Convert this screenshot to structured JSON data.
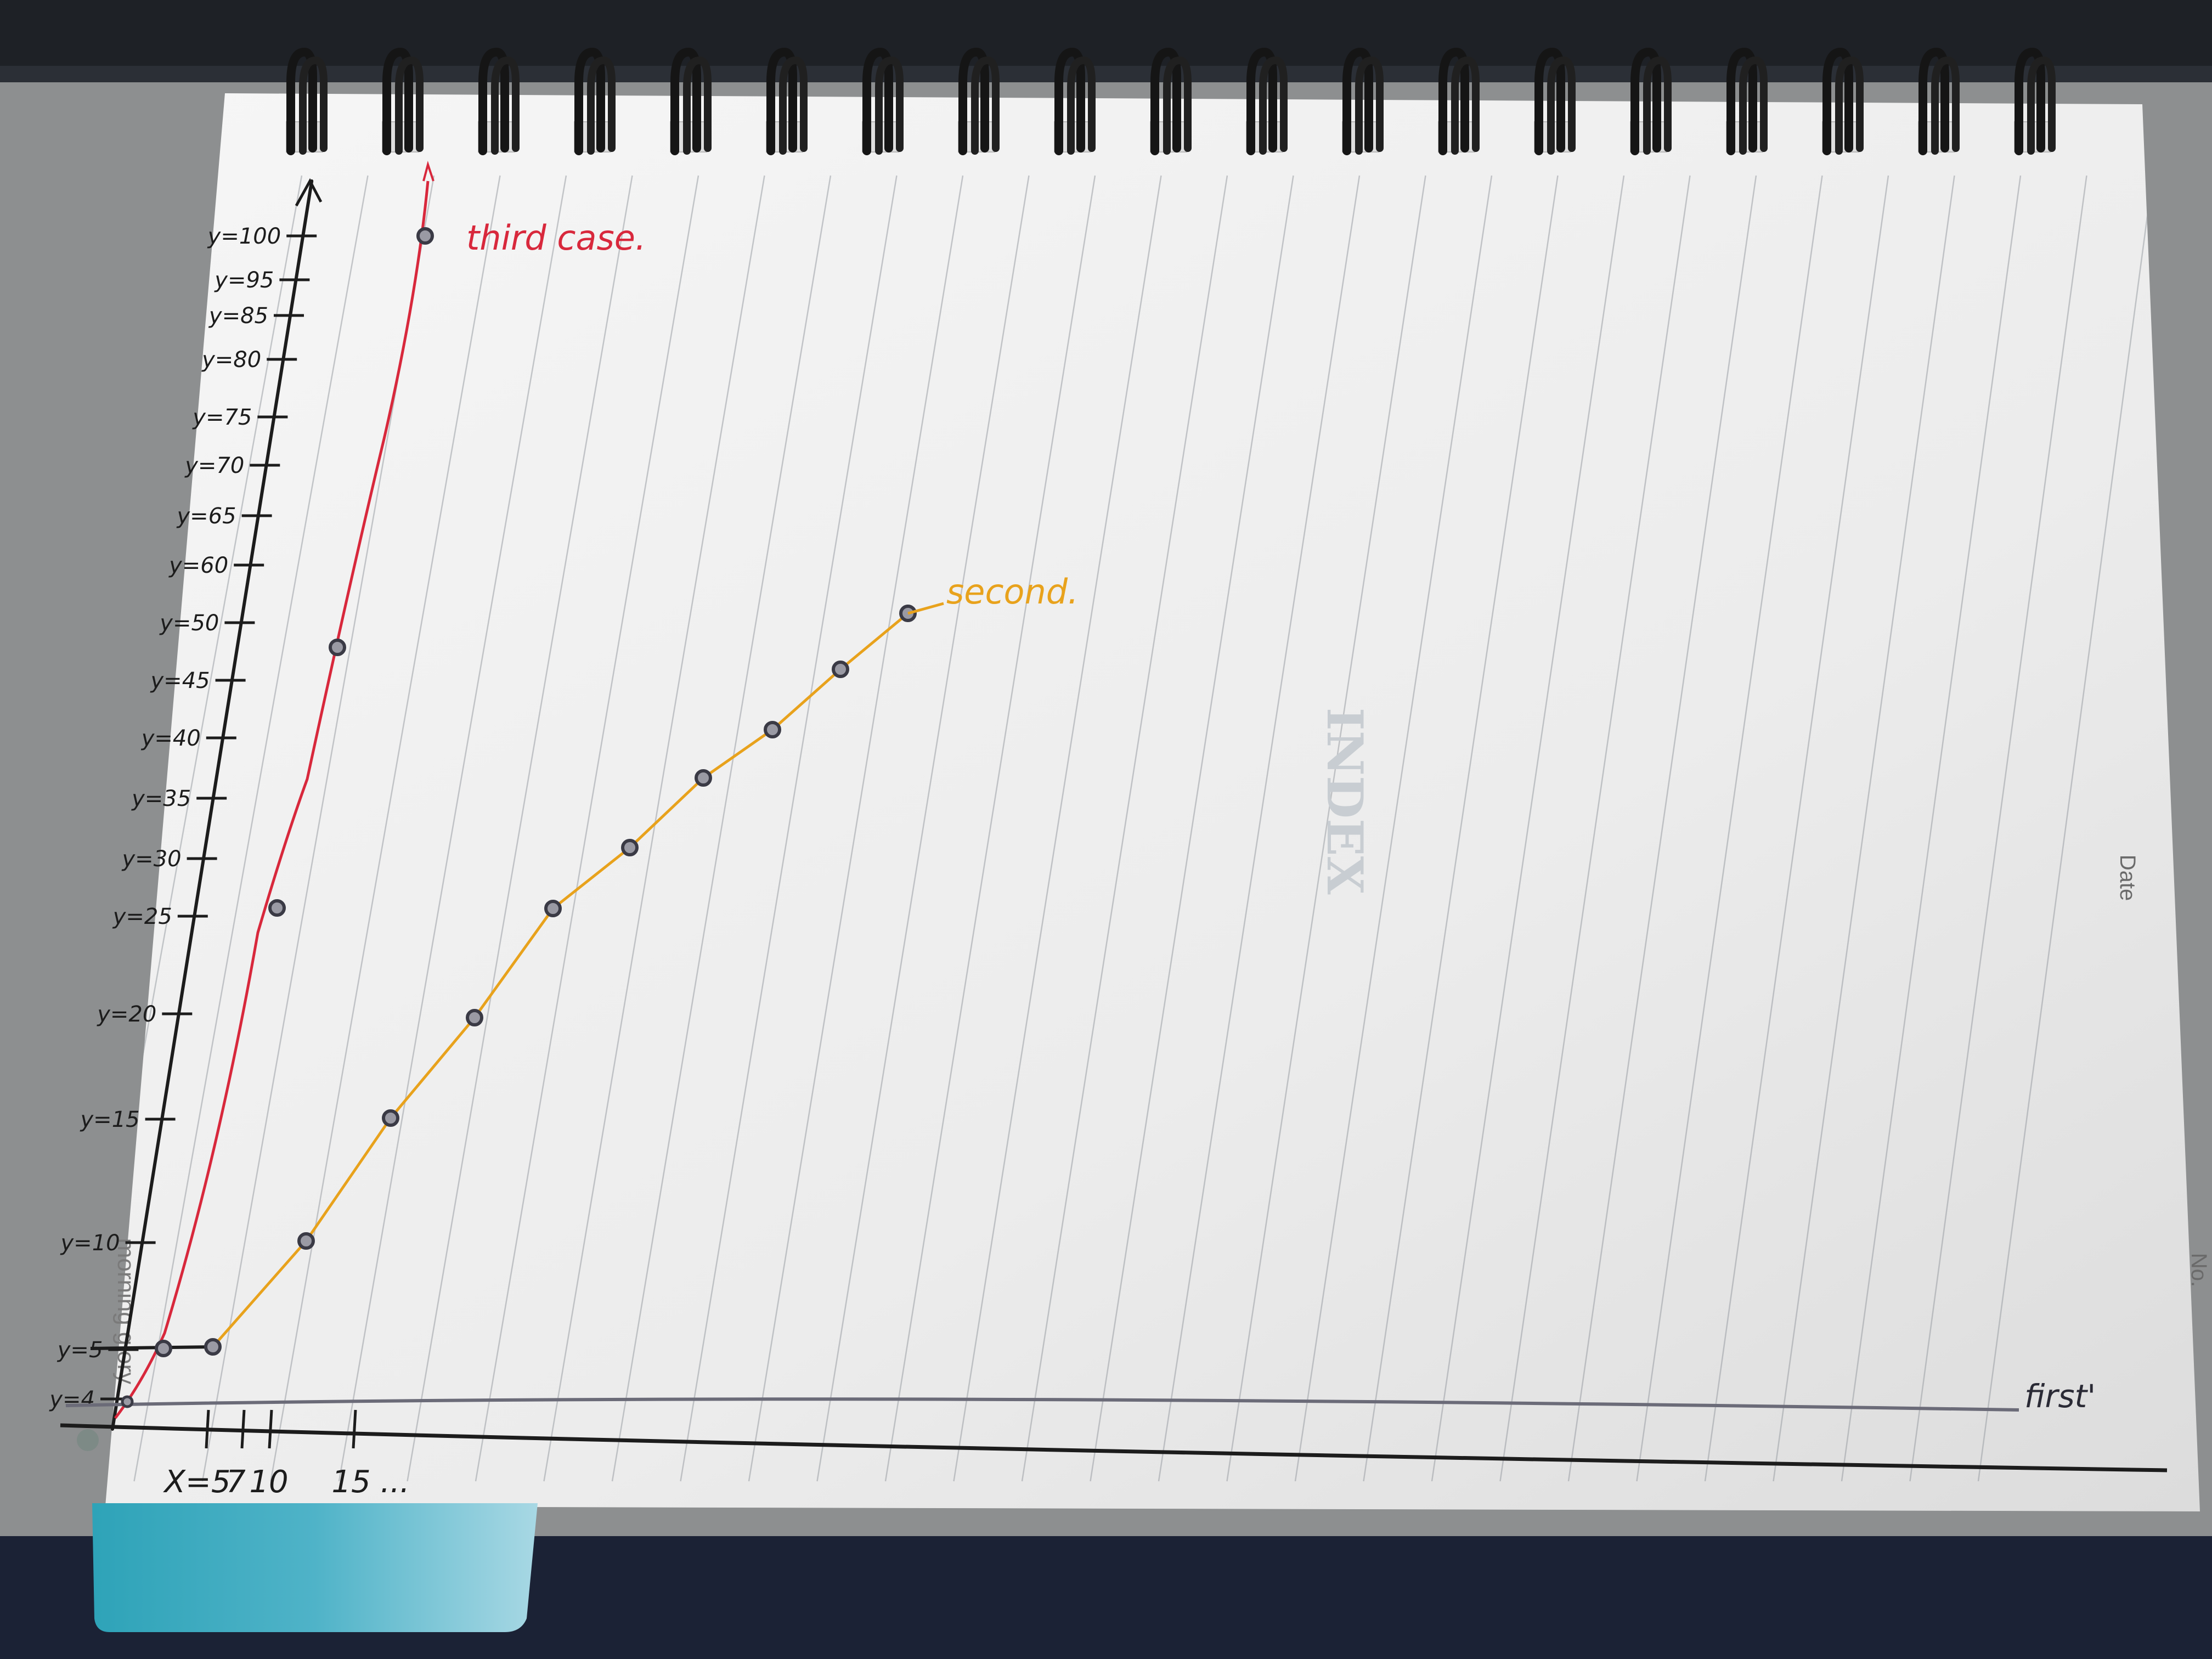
{
  "notebook": {
    "brand": "morning glory",
    "side_labels": {
      "date": "Date",
      "number": "No."
    },
    "index_watermark": "INDEX",
    "ring_count": 19
  },
  "chart_data": {
    "type": "line",
    "title": "",
    "xlabel": "",
    "ylabel": "",
    "x_tick_labels": [
      "X=5",
      "7",
      "10",
      "15",
      "..."
    ],
    "y_tick_labels": [
      "y=4",
      "y=5",
      "y=10",
      "y=15",
      "y=20",
      "y=25",
      "y=30",
      "y=35",
      "y=40",
      "y=45",
      "y=50",
      "y=60",
      "y=65",
      "y=70",
      "y=75",
      "y=80",
      "y=85",
      "y=95",
      "y=100"
    ],
    "series": [
      {
        "name": "first",
        "label": "first'",
        "color": "#6b6b78",
        "points": [
          [
            0,
            4
          ],
          [
            100,
            4
          ]
        ]
      },
      {
        "name": "second",
        "label": "second.",
        "color": "#e8a21c",
        "points": [
          [
            5,
            5
          ],
          [
            10,
            10
          ],
          [
            15,
            15
          ],
          [
            20,
            20
          ],
          [
            25,
            25
          ],
          [
            30,
            30
          ],
          [
            35,
            35
          ],
          [
            40,
            40
          ],
          [
            45,
            45
          ],
          [
            50,
            50
          ]
        ]
      },
      {
        "name": "third case",
        "label": "third case.",
        "color": "#d8283c",
        "points": [
          [
            3.5,
            4
          ],
          [
            5,
            5
          ],
          [
            7,
            25
          ],
          [
            10,
            50
          ],
          [
            15,
            100
          ]
        ]
      }
    ],
    "colors": {
      "axis": "#1c1c1c",
      "marker": "#3a3a45"
    }
  }
}
